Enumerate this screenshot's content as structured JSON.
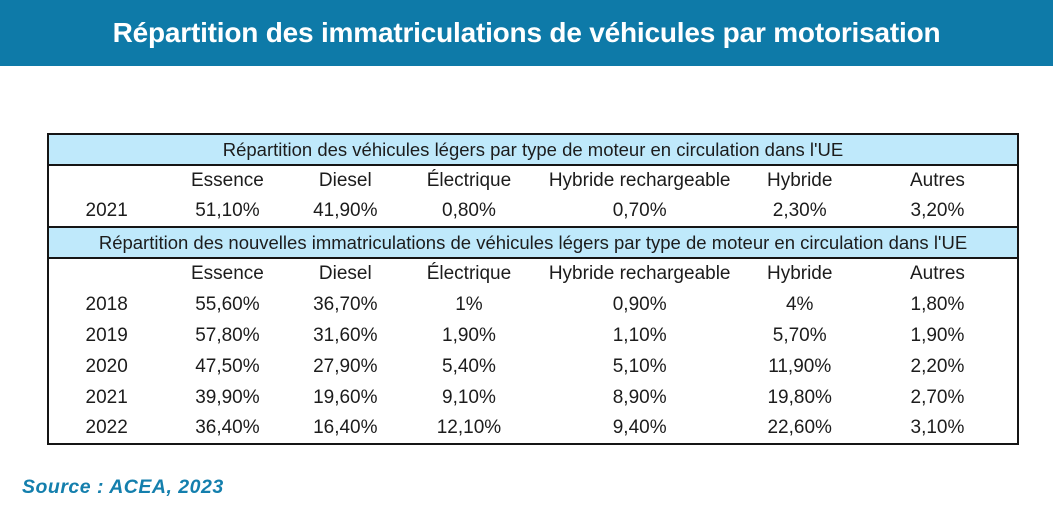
{
  "title_bar": {
    "text": "Répartition des immatriculations de véhicules par motorisation",
    "bg_color": "#0e7aa8",
    "text_color": "#ffffff"
  },
  "table": {
    "section_header_bg": "#bfe9fb",
    "border_color": "#151515",
    "sections": [
      {
        "header": "Répartition des véhicules légers par type de moteur en circulation dans l'UE",
        "column_headers": [
          "Essence",
          "Diesel",
          "Électrique",
          "Hybride rechargeable",
          "Hybride",
          "Autres"
        ],
        "rows": [
          {
            "year": "2021",
            "values": [
              "51,10%",
              "41,90%",
              "0,80%",
              "0,70%",
              "2,30%",
              "3,20%"
            ]
          }
        ]
      },
      {
        "header": "Répartition des nouvelles immatriculations de véhicules légers par type de moteur en circulation dans l'UE",
        "column_headers": [
          "Essence",
          "Diesel",
          "Électrique",
          "Hybride rechargeable",
          "Hybride",
          "Autres"
        ],
        "rows": [
          {
            "year": "2018",
            "values": [
              "55,60%",
              "36,70%",
              "1%",
              "0,90%",
              "4%",
              "1,80%"
            ]
          },
          {
            "year": "2019",
            "values": [
              "57,80%",
              "31,60%",
              "1,90%",
              "1,10%",
              "5,70%",
              "1,90%"
            ]
          },
          {
            "year": "2020",
            "values": [
              "47,50%",
              "27,90%",
              "5,40%",
              "5,10%",
              "11,90%",
              "2,20%"
            ]
          },
          {
            "year": "2021",
            "values": [
              "39,90%",
              "19,60%",
              "9,10%",
              "8,90%",
              "19,80%",
              "2,70%"
            ]
          },
          {
            "year": "2022",
            "values": [
              "36,40%",
              "16,40%",
              "12,10%",
              "9,40%",
              "22,60%",
              "3,10%"
            ]
          }
        ]
      }
    ]
  },
  "source": {
    "text": "Source : ACEA, 2023",
    "color": "#147fad"
  }
}
